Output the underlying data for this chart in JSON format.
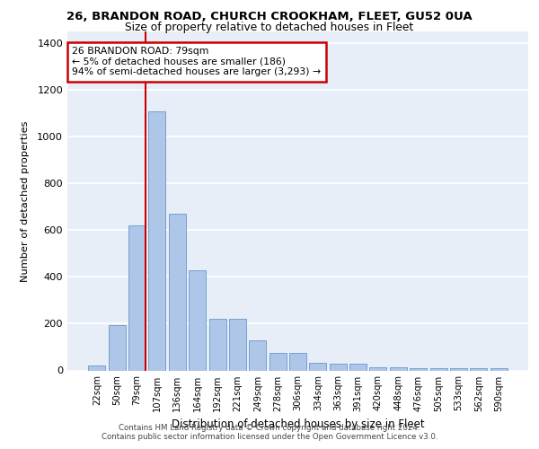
{
  "title_line1": "26, BRANDON ROAD, CHURCH CROOKHAM, FLEET, GU52 0UA",
  "title_line2": "Size of property relative to detached houses in Fleet",
  "xlabel": "Distribution of detached houses by size in Fleet",
  "ylabel": "Number of detached properties",
  "categories": [
    "22sqm",
    "50sqm",
    "79sqm",
    "107sqm",
    "136sqm",
    "164sqm",
    "192sqm",
    "221sqm",
    "249sqm",
    "278sqm",
    "306sqm",
    "334sqm",
    "363sqm",
    "391sqm",
    "420sqm",
    "448sqm",
    "476sqm",
    "505sqm",
    "533sqm",
    "562sqm",
    "590sqm"
  ],
  "values": [
    20,
    195,
    620,
    1110,
    670,
    430,
    220,
    220,
    130,
    75,
    75,
    32,
    30,
    28,
    15,
    15,
    10,
    10,
    10,
    10,
    10
  ],
  "bar_color": "#aec6e8",
  "bar_edge_color": "#6699cc",
  "vline_index": 2,
  "vline_color": "#cc0000",
  "annotation_text": "26 BRANDON ROAD: 79sqm\n← 5% of detached houses are smaller (186)\n94% of semi-detached houses are larger (3,293) →",
  "annotation_box_color": "#ffffff",
  "annotation_box_edge": "#cc0000",
  "ylim": [
    0,
    1450
  ],
  "yticks": [
    0,
    200,
    400,
    600,
    800,
    1000,
    1200,
    1400
  ],
  "background_color": "#e8eef8",
  "grid_color": "#ffffff",
  "footer_line1": "Contains HM Land Registry data © Crown copyright and database right 2024.",
  "footer_line2": "Contains public sector information licensed under the Open Government Licence v3.0."
}
